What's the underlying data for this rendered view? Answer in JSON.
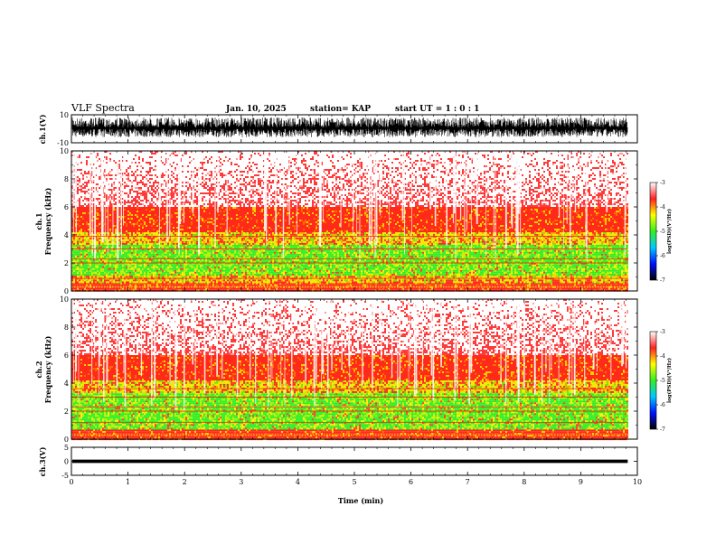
{
  "header": {
    "title": "VLF Spectra",
    "date": "Jan. 10, 2025",
    "station": "station= KAP",
    "start_ut": "start  UT =   1 : 0  : 1"
  },
  "colorbar": {
    "label": "log(PSD)(V²/Hz)",
    "ticks": [
      "-3",
      "-4",
      "-5",
      "-6",
      "-7"
    ],
    "colors": [
      "#ffffff",
      "#ff2222",
      "#ffff00",
      "#33ee22",
      "#00c8ff",
      "#0010ff",
      "#000000"
    ]
  },
  "chart_data": [
    {
      "type": "line",
      "name": "ch1-waveform",
      "ylabel": "ch.1(V)",
      "ylim": [
        -10,
        10
      ],
      "ytick_labels": [
        "10",
        "-10"
      ],
      "xlim": [
        0,
        10
      ],
      "data_end_min": 9.83,
      "description_values": {
        "typical_min": -6,
        "typical_max": 8
      }
    },
    {
      "type": "heatmap",
      "name": "ch1-spectrogram",
      "ylabel_line1": "ch.1",
      "ylabel_line2": "Frequency (kHz)",
      "ylim": [
        0,
        10
      ],
      "ytick_labels": [
        "0",
        "2",
        "4",
        "6",
        "8",
        "10"
      ],
      "xlim": [
        0,
        10
      ],
      "data_end_min": 9.83,
      "bands_khz": [
        {
          "from": 0,
          "to": 0.6,
          "level": "red"
        },
        {
          "from": 0.6,
          "to": 1.2,
          "level": "yellow"
        },
        {
          "from": 1.2,
          "to": 3.3,
          "level": "green"
        },
        {
          "from": 3.3,
          "to": 4.2,
          "level": "yellow"
        },
        {
          "from": 4.2,
          "to": 6.0,
          "level": "red"
        },
        {
          "from": 6.0,
          "to": 10,
          "level": "sparse-red"
        }
      ],
      "lines_khz": [
        2.0,
        2.3,
        3.0,
        3.9,
        0.9
      ]
    },
    {
      "type": "heatmap",
      "name": "ch2-spectrogram",
      "ylabel_line1": "ch.2",
      "ylabel_line2": "Frequency (kHz)",
      "ylim": [
        0,
        10
      ],
      "ytick_labels": [
        "0",
        "2",
        "4",
        "6",
        "8",
        "10"
      ],
      "xlim": [
        0,
        10
      ],
      "data_end_min": 9.83,
      "bands_khz": [
        {
          "from": 0,
          "to": 0.7,
          "level": "red"
        },
        {
          "from": 0.7,
          "to": 3.4,
          "level": "green"
        },
        {
          "from": 3.4,
          "to": 4.2,
          "level": "yellow"
        },
        {
          "from": 4.2,
          "to": 6.0,
          "level": "red"
        },
        {
          "from": 6.0,
          "to": 10,
          "level": "sparse-red"
        }
      ],
      "lines_khz": [
        2.0,
        2.3,
        3.0,
        3.6,
        1.2
      ]
    },
    {
      "type": "line",
      "name": "ch3-waveform",
      "ylabel": "ch.3(V)",
      "ylim": [
        -5,
        5
      ],
      "ytick_labels": [
        "5",
        "0",
        "-5"
      ],
      "xlim": [
        0,
        10
      ],
      "data_end_min": 9.83,
      "description_values": {
        "level": 0,
        "amplitude": 0.6
      }
    }
  ],
  "xaxis": {
    "label": "Time (min)",
    "ticks": [
      "0",
      "1",
      "2",
      "3",
      "4",
      "5",
      "6",
      "7",
      "8",
      "9",
      "10"
    ]
  }
}
